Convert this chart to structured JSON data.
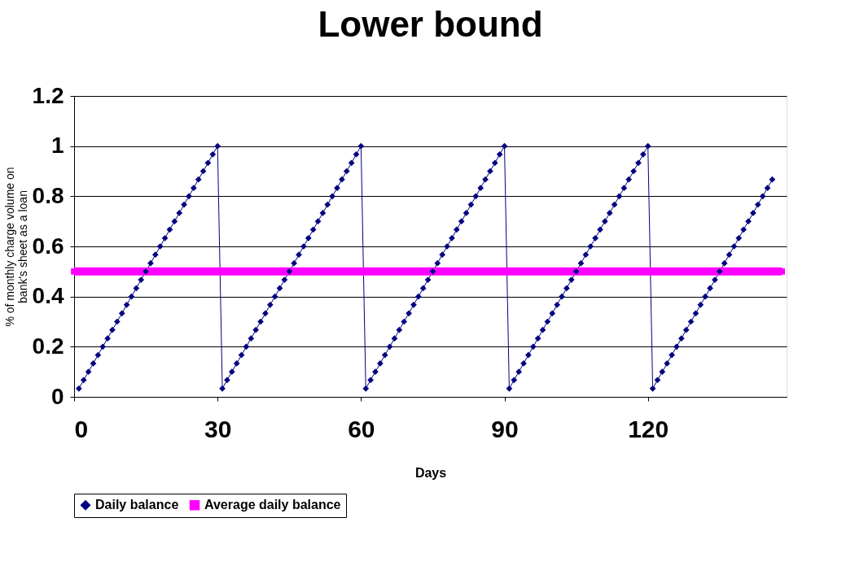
{
  "chart_data": {
    "type": "line",
    "title": "Lower bound",
    "xlabel": "Days",
    "ylabel": "% of monthly charge volume on bank's sheet as a loan",
    "x": [
      1,
      2,
      3,
      4,
      5,
      6,
      7,
      8,
      9,
      10,
      11,
      12,
      13,
      14,
      15,
      16,
      17,
      18,
      19,
      20,
      21,
      22,
      23,
      24,
      25,
      26,
      27,
      28,
      29,
      30,
      31,
      32,
      33,
      34,
      35,
      36,
      37,
      38,
      39,
      40,
      41,
      42,
      43,
      44,
      45,
      46,
      47,
      48,
      49,
      50,
      51,
      52,
      53,
      54,
      55,
      56,
      57,
      58,
      59,
      60,
      61,
      62,
      63,
      64,
      65,
      66,
      67,
      68,
      69,
      70,
      71,
      72,
      73,
      74,
      75,
      76,
      77,
      78,
      79,
      80,
      81,
      82,
      83,
      84,
      85,
      86,
      87,
      88,
      89,
      90,
      91,
      92,
      93,
      94,
      95,
      96,
      97,
      98,
      99,
      100,
      101,
      102,
      103,
      104,
      105,
      106,
      107,
      108,
      109,
      110,
      111,
      112,
      113,
      114,
      115,
      116,
      117,
      118,
      119,
      120,
      121,
      122,
      123,
      124,
      125,
      126,
      127,
      128,
      129,
      130,
      131,
      132,
      133,
      134,
      135,
      136,
      137,
      138,
      139,
      140,
      141,
      142,
      143,
      144,
      145,
      146
    ],
    "series": [
      {
        "name": "Daily balance",
        "color": "#000080",
        "marker": "diamond",
        "values": [
          0.033,
          0.067,
          0.1,
          0.133,
          0.167,
          0.2,
          0.233,
          0.267,
          0.3,
          0.333,
          0.367,
          0.4,
          0.433,
          0.467,
          0.5,
          0.533,
          0.567,
          0.6,
          0.633,
          0.667,
          0.7,
          0.733,
          0.767,
          0.8,
          0.833,
          0.867,
          0.9,
          0.933,
          0.967,
          1,
          0.033,
          0.067,
          0.1,
          0.133,
          0.167,
          0.2,
          0.233,
          0.267,
          0.3,
          0.333,
          0.367,
          0.4,
          0.433,
          0.467,
          0.5,
          0.533,
          0.567,
          0.6,
          0.633,
          0.667,
          0.7,
          0.733,
          0.767,
          0.8,
          0.833,
          0.867,
          0.9,
          0.933,
          0.967,
          1,
          0.033,
          0.067,
          0.1,
          0.133,
          0.167,
          0.2,
          0.233,
          0.267,
          0.3,
          0.333,
          0.367,
          0.4,
          0.433,
          0.467,
          0.5,
          0.533,
          0.567,
          0.6,
          0.633,
          0.667,
          0.7,
          0.733,
          0.767,
          0.8,
          0.833,
          0.867,
          0.9,
          0.933,
          0.967,
          1,
          0.033,
          0.067,
          0.1,
          0.133,
          0.167,
          0.2,
          0.233,
          0.267,
          0.3,
          0.333,
          0.367,
          0.4,
          0.433,
          0.467,
          0.5,
          0.533,
          0.567,
          0.6,
          0.633,
          0.667,
          0.7,
          0.733,
          0.767,
          0.8,
          0.833,
          0.867,
          0.9,
          0.933,
          0.967,
          1,
          0.033,
          0.067,
          0.1,
          0.133,
          0.167,
          0.2,
          0.233,
          0.267,
          0.3,
          0.333,
          0.367,
          0.4,
          0.433,
          0.467,
          0.5,
          0.533,
          0.567,
          0.6,
          0.633,
          0.667,
          0.7,
          0.733,
          0.767,
          0.8,
          0.833,
          0.867
        ]
      },
      {
        "name": "Average daily balance",
        "color": "#ff00ff",
        "marker": "square",
        "x": [
          0,
          148
        ],
        "values": [
          0.5,
          0.5
        ]
      }
    ],
    "xlim": [
      0,
      149
    ],
    "xticks": [
      0,
      30,
      60,
      90,
      120
    ],
    "ylim": [
      0,
      1.2
    ],
    "yticks": [
      0,
      0.2,
      0.4,
      0.6,
      0.8,
      1,
      1.2
    ],
    "grid": "y",
    "legend": "bottom"
  }
}
